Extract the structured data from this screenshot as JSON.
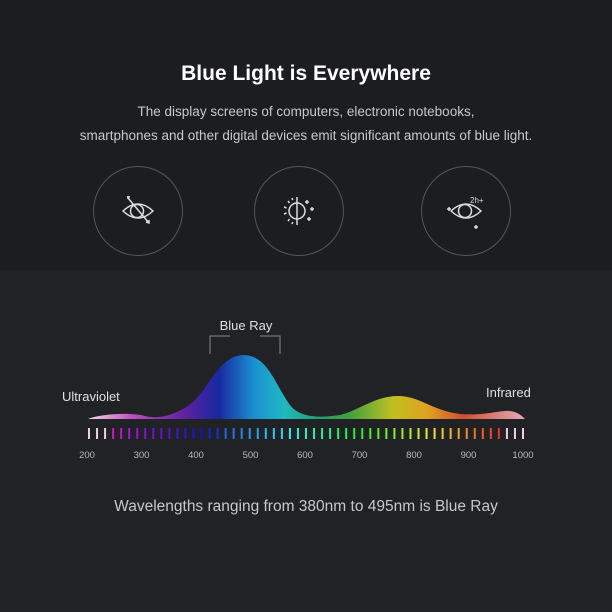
{
  "header": {
    "title": "Blue Light is Everywhere",
    "subtitle_line1": "The display screens of computers, electronic notebooks,",
    "subtitle_line2": "smartphones and other digital devices emit significant amounts of blue light."
  },
  "icons": [
    {
      "name": "eye-arrow-icon"
    },
    {
      "name": "sun-brightness-icon"
    },
    {
      "name": "eye-2h-icon",
      "text": "2h+"
    }
  ],
  "spectrum": {
    "blue_ray_label": "Blue Ray",
    "left_label": "Ultraviolet",
    "right_label": "Infrared",
    "axis_ticks": [
      "200",
      "300",
      "400",
      "500",
      "600",
      "700",
      "800",
      "900",
      "1000"
    ],
    "axis_range": [
      200,
      1000
    ]
  },
  "footer": "Wavelengths ranging from 380nm to 495nm is Blue Ray"
}
